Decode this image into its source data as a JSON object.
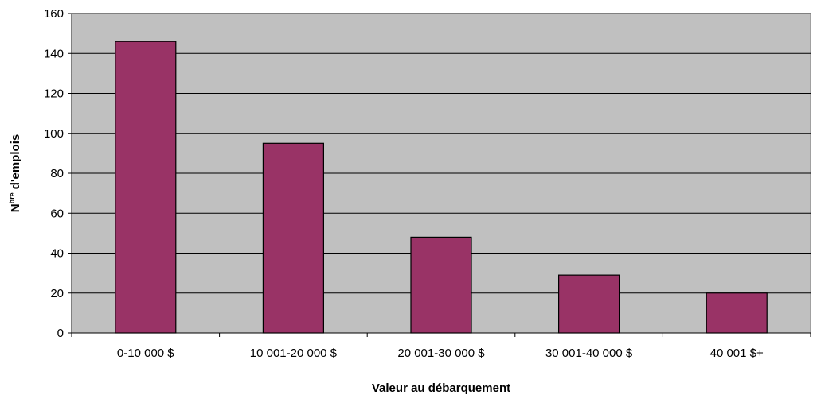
{
  "chart_data": {
    "type": "bar",
    "categories": [
      "0-10 000 $",
      "10 001-20 000 $",
      "20 001-30 000 $",
      "30 001-40 000 $",
      "40 001 $+"
    ],
    "values": [
      146,
      95,
      48,
      29,
      20
    ],
    "xlabel": "Valeur au débarquement",
    "ylabel_main": "N",
    "ylabel_sup": "bre",
    "ylabel_rest": " d'emplois",
    "ylim": [
      0,
      160
    ],
    "yticks": [
      0,
      20,
      40,
      60,
      80,
      100,
      120,
      140,
      160
    ],
    "grid": true,
    "colors": {
      "bar": "#993366",
      "bar_stroke": "#000000",
      "plot_bg": "#C0C0C0",
      "grid": "#000000"
    }
  }
}
